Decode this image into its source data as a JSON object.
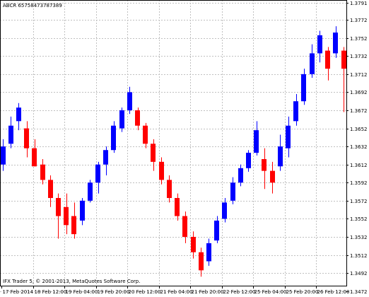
{
  "header": {
    "symbol_text": "ABCR 65758473787389"
  },
  "footer": {
    "copyright": "IFX Trader 5, © 2001-2013, MetaQuotes Software Corp."
  },
  "colors": {
    "bull": "#0000ff",
    "bear": "#ff0000",
    "grid": "#c0c0c0",
    "wick": "#000000",
    "border": "#000000"
  },
  "chart_data": {
    "type": "candlestick",
    "grid": true,
    "ylim": [
      1.3478,
      1.3794
    ],
    "y_ticks": [
      "1.3791",
      "1.3772",
      "1.3752",
      "1.3732",
      "1.3712",
      "1.3692",
      "1.3672",
      "1.3652",
      "1.3632",
      "1.3612",
      "1.3592",
      "1.3572",
      "1.3552",
      "1.3532",
      "1.3512",
      "1.3492",
      "1.3472"
    ],
    "x_labels": [
      "17 Feb 2014",
      "18 Feb 12:00",
      "19 Feb 04:00",
      "19 Feb 20:00",
      "20 Feb 12:00",
      "21 Feb 04:00",
      "21 Feb 20:00",
      "22 Feb 12:00",
      "25 Feb 04:00",
      "25 Feb 20:00",
      "26 Feb 12:00"
    ],
    "candles": [
      {
        "o": 1.3612,
        "h": 1.364,
        "l": 1.3605,
        "c": 1.3632
      },
      {
        "o": 1.3635,
        "h": 1.3665,
        "l": 1.363,
        "c": 1.3655
      },
      {
        "o": 1.366,
        "h": 1.368,
        "l": 1.365,
        "c": 1.3675
      },
      {
        "o": 1.3652,
        "h": 1.366,
        "l": 1.362,
        "c": 1.363
      },
      {
        "o": 1.363,
        "h": 1.364,
        "l": 1.361,
        "c": 1.361
      },
      {
        "o": 1.3612,
        "h": 1.3618,
        "l": 1.359,
        "c": 1.3595
      },
      {
        "o": 1.3595,
        "h": 1.36,
        "l": 1.3565,
        "c": 1.3575
      },
      {
        "o": 1.3575,
        "h": 1.358,
        "l": 1.353,
        "c": 1.3555
      },
      {
        "o": 1.3565,
        "h": 1.358,
        "l": 1.3535,
        "c": 1.3545
      },
      {
        "o": 1.3555,
        "h": 1.357,
        "l": 1.353,
        "c": 1.3535
      },
      {
        "o": 1.355,
        "h": 1.3575,
        "l": 1.3545,
        "c": 1.3572
      },
      {
        "o": 1.3572,
        "h": 1.3595,
        "l": 1.357,
        "c": 1.3592
      },
      {
        "o": 1.3592,
        "h": 1.3615,
        "l": 1.358,
        "c": 1.3612
      },
      {
        "o": 1.3612,
        "h": 1.3632,
        "l": 1.36,
        "c": 1.3628
      },
      {
        "o": 1.3628,
        "h": 1.366,
        "l": 1.3625,
        "c": 1.3655
      },
      {
        "o": 1.3652,
        "h": 1.3675,
        "l": 1.3648,
        "c": 1.3672
      },
      {
        "o": 1.3672,
        "h": 1.3698,
        "l": 1.3668,
        "c": 1.3692
      },
      {
        "o": 1.3672,
        "h": 1.3675,
        "l": 1.365,
        "c": 1.3655
      },
      {
        "o": 1.3655,
        "h": 1.3658,
        "l": 1.363,
        "c": 1.3635
      },
      {
        "o": 1.3635,
        "h": 1.364,
        "l": 1.3605,
        "c": 1.3615
      },
      {
        "o": 1.3615,
        "h": 1.362,
        "l": 1.359,
        "c": 1.3595
      },
      {
        "o": 1.3595,
        "h": 1.36,
        "l": 1.357,
        "c": 1.3575
      },
      {
        "o": 1.3575,
        "h": 1.358,
        "l": 1.355,
        "c": 1.3555
      },
      {
        "o": 1.3555,
        "h": 1.356,
        "l": 1.3525,
        "c": 1.3532
      },
      {
        "o": 1.3532,
        "h": 1.3538,
        "l": 1.3508,
        "c": 1.3515
      },
      {
        "o": 1.3515,
        "h": 1.352,
        "l": 1.3488,
        "c": 1.3495
      },
      {
        "o": 1.3505,
        "h": 1.353,
        "l": 1.35,
        "c": 1.3525
      },
      {
        "o": 1.3528,
        "h": 1.3555,
        "l": 1.3525,
        "c": 1.355
      },
      {
        "o": 1.3552,
        "h": 1.3575,
        "l": 1.3548,
        "c": 1.357
      },
      {
        "o": 1.3572,
        "h": 1.3598,
        "l": 1.3568,
        "c": 1.3592
      },
      {
        "o": 1.3592,
        "h": 1.3612,
        "l": 1.3588,
        "c": 1.3608
      },
      {
        "o": 1.3608,
        "h": 1.3628,
        "l": 1.3604,
        "c": 1.3625
      },
      {
        "o": 1.3625,
        "h": 1.366,
        "l": 1.3622,
        "c": 1.365
      },
      {
        "o": 1.3618,
        "h": 1.363,
        "l": 1.3585,
        "c": 1.3605
      },
      {
        "o": 1.3605,
        "h": 1.3615,
        "l": 1.358,
        "c": 1.3592
      },
      {
        "o": 1.361,
        "h": 1.3645,
        "l": 1.3605,
        "c": 1.3632
      },
      {
        "o": 1.363,
        "h": 1.3665,
        "l": 1.362,
        "c": 1.3655
      },
      {
        "o": 1.366,
        "h": 1.369,
        "l": 1.3655,
        "c": 1.3682
      },
      {
        "o": 1.3682,
        "h": 1.3718,
        "l": 1.3678,
        "c": 1.3712
      },
      {
        "o": 1.3712,
        "h": 1.3745,
        "l": 1.3708,
        "c": 1.3735
      },
      {
        "o": 1.3735,
        "h": 1.376,
        "l": 1.3725,
        "c": 1.3755
      },
      {
        "o": 1.3738,
        "h": 1.3742,
        "l": 1.3705,
        "c": 1.3718
      },
      {
        "o": 1.3735,
        "h": 1.3765,
        "l": 1.373,
        "c": 1.3758
      },
      {
        "o": 1.3738,
        "h": 1.3742,
        "l": 1.367,
        "c": 1.3718
      }
    ]
  }
}
